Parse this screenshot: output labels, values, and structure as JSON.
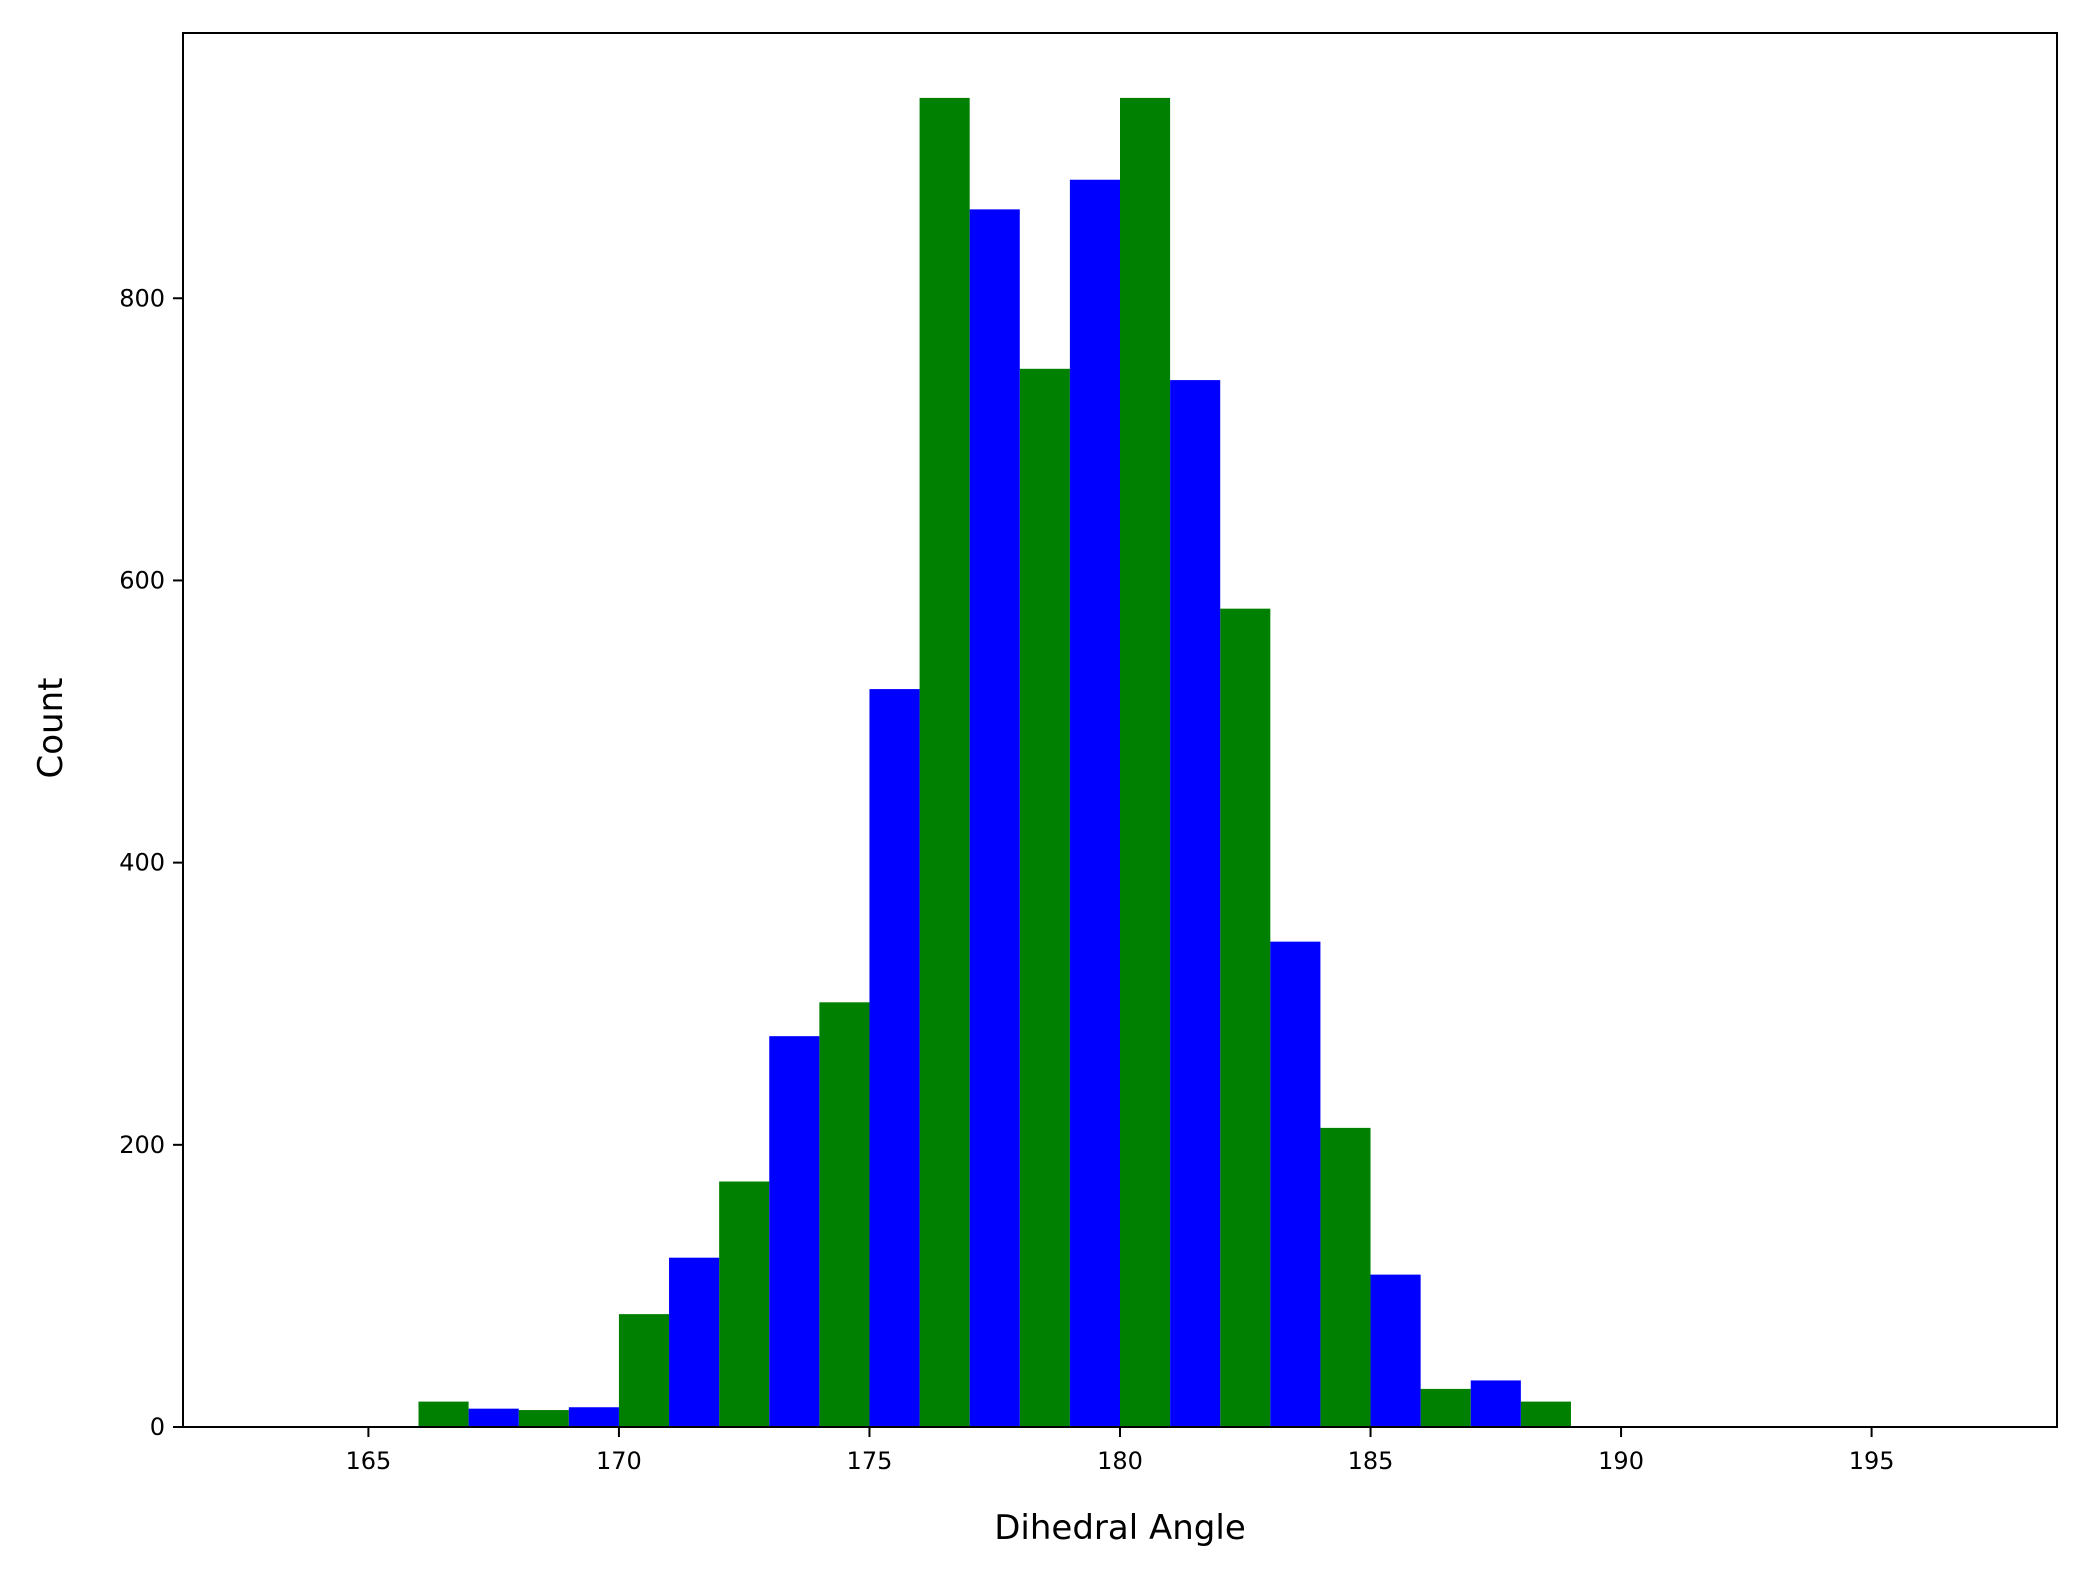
{
  "chart_data": {
    "type": "bar",
    "title": "",
    "xlabel": "Dihedral Angle",
    "ylabel": "Count",
    "xlim": [
      161.3,
      198.7
    ],
    "ylim": [
      0,
      988
    ],
    "xticks": [
      165,
      170,
      175,
      180,
      185,
      190,
      195
    ],
    "yticks": [
      0,
      200,
      400,
      600,
      800
    ],
    "grid": false,
    "legend": "none",
    "bin_width": 1,
    "series": [
      {
        "color": "#008000",
        "bins": [
          {
            "x": 166.5,
            "count": 18
          },
          {
            "x": 168.5,
            "count": 12
          },
          {
            "x": 170.5,
            "count": 80
          },
          {
            "x": 172.5,
            "count": 174
          },
          {
            "x": 174.5,
            "count": 301
          },
          {
            "x": 176.5,
            "count": 942
          },
          {
            "x": 178.5,
            "count": 750
          },
          {
            "x": 180.5,
            "count": 942
          },
          {
            "x": 182.5,
            "count": 580
          },
          {
            "x": 184.5,
            "count": 212
          },
          {
            "x": 186.5,
            "count": 27
          },
          {
            "x": 188.5,
            "count": 18
          }
        ]
      },
      {
        "color": "#0000ff",
        "bins": [
          {
            "x": 167.5,
            "count": 13
          },
          {
            "x": 169.5,
            "count": 14
          },
          {
            "x": 171.5,
            "count": 120
          },
          {
            "x": 173.5,
            "count": 277
          },
          {
            "x": 175.5,
            "count": 523
          },
          {
            "x": 177.5,
            "count": 863
          },
          {
            "x": 179.5,
            "count": 884
          },
          {
            "x": 181.5,
            "count": 742
          },
          {
            "x": 183.5,
            "count": 344
          },
          {
            "x": 185.5,
            "count": 108
          },
          {
            "x": 187.5,
            "count": 33
          }
        ]
      }
    ]
  }
}
